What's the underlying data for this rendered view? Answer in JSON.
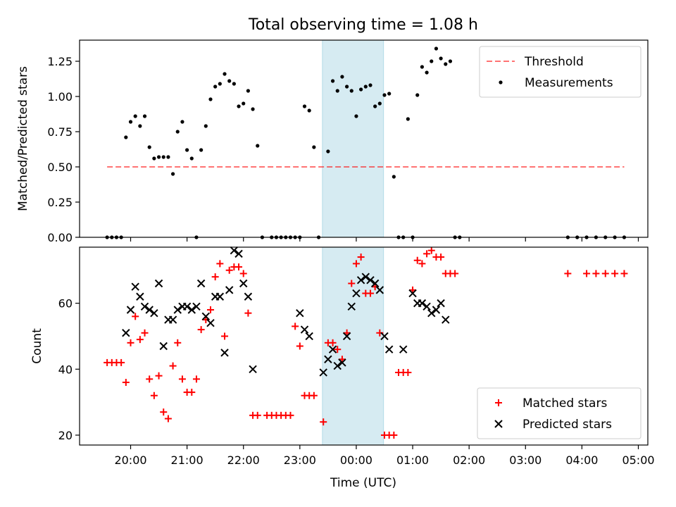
{
  "chart_data": {
    "title": "Total observing time = 1.08 h",
    "xlabel": "Time (UTC)",
    "x_ticks": [
      "20:00",
      "21:00",
      "22:00",
      "23:00",
      "00:00",
      "01:00",
      "02:00",
      "03:00",
      "04:00",
      "05:00"
    ],
    "shaded_interval": {
      "start": "23:24",
      "end": "00:29",
      "color": "#add8e6"
    },
    "colors": {
      "threshold": "#ff0000",
      "measurements": "#000000",
      "matched": "#ff0000",
      "predicted": "#000000",
      "shade": "#add8e6"
    },
    "panels": [
      {
        "type": "scatter",
        "ylabel": "Matched/Predicted stars",
        "ylim": [
          0,
          1.4
        ],
        "y_ticks": [
          "0.00",
          "0.25",
          "0.50",
          "0.75",
          "1.00",
          "1.25"
        ],
        "legend_position": "top-right",
        "threshold": {
          "name": "Threshold",
          "value": 0.5,
          "x_range": [
            "19:35",
            "04:45"
          ]
        },
        "series": [
          {
            "name": "Measurements",
            "marker": "dot",
            "points": [
              [
                "19:35",
                0
              ],
              [
                "19:40",
                0
              ],
              [
                "19:45",
                0
              ],
              [
                "19:50",
                0
              ],
              [
                "19:55",
                0.71
              ],
              [
                "20:00",
                0.82
              ],
              [
                "20:05",
                0.86
              ],
              [
                "20:10",
                0.79
              ],
              [
                "20:15",
                0.86
              ],
              [
                "20:20",
                0.64
              ],
              [
                "20:25",
                0.56
              ],
              [
                "20:30",
                0.57
              ],
              [
                "20:35",
                0.57
              ],
              [
                "20:40",
                0.57
              ],
              [
                "20:45",
                0.45
              ],
              [
                "20:50",
                0.75
              ],
              [
                "20:55",
                0.82
              ],
              [
                "21:00",
                0.62
              ],
              [
                "21:05",
                0.56
              ],
              [
                "21:10",
                0
              ],
              [
                "21:15",
                0.62
              ],
              [
                "21:20",
                0.79
              ],
              [
                "21:25",
                0.98
              ],
              [
                "21:30",
                1.07
              ],
              [
                "21:35",
                1.09
              ],
              [
                "21:40",
                1.16
              ],
              [
                "21:45",
                1.11
              ],
              [
                "21:50",
                1.09
              ],
              [
                "21:55",
                0.93
              ],
              [
                "22:00",
                0.95
              ],
              [
                "22:05",
                1.04
              ],
              [
                "22:10",
                0.91
              ],
              [
                "22:15",
                0.65
              ],
              [
                "22:20",
                0
              ],
              [
                "22:30",
                0
              ],
              [
                "22:35",
                0
              ],
              [
                "22:40",
                0
              ],
              [
                "22:45",
                0
              ],
              [
                "22:50",
                0
              ],
              [
                "22:55",
                0
              ],
              [
                "23:00",
                0
              ],
              [
                "23:05",
                0.93
              ],
              [
                "23:10",
                0.9
              ],
              [
                "23:15",
                0.64
              ],
              [
                "23:20",
                0
              ],
              [
                "23:30",
                0.61
              ],
              [
                "23:35",
                1.11
              ],
              [
                "23:40",
                1.04
              ],
              [
                "23:45",
                1.14
              ],
              [
                "23:50",
                1.07
              ],
              [
                "23:55",
                1.04
              ],
              [
                "00:00",
                0.86
              ],
              [
                "00:05",
                1.05
              ],
              [
                "00:10",
                1.07
              ],
              [
                "00:15",
                1.08
              ],
              [
                "00:20",
                0.93
              ],
              [
                "00:25",
                0.95
              ],
              [
                "00:30",
                1.01
              ],
              [
                "00:35",
                1.02
              ],
              [
                "00:40",
                0.43
              ],
              [
                "00:45",
                0
              ],
              [
                "00:50",
                0
              ],
              [
                "00:55",
                0.84
              ],
              [
                "01:00",
                0
              ],
              [
                "01:05",
                1.01
              ],
              [
                "01:10",
                1.21
              ],
              [
                "01:15",
                1.17
              ],
              [
                "01:20",
                1.25
              ],
              [
                "01:25",
                1.34
              ],
              [
                "01:30",
                1.27
              ],
              [
                "01:35",
                1.23
              ],
              [
                "01:40",
                1.25
              ],
              [
                "01:45",
                0
              ],
              [
                "01:50",
                0
              ],
              [
                "03:45",
                0
              ],
              [
                "03:55",
                0
              ],
              [
                "04:05",
                0
              ],
              [
                "04:15",
                0
              ],
              [
                "04:25",
                0
              ],
              [
                "04:35",
                0
              ],
              [
                "04:45",
                0
              ]
            ]
          }
        ]
      },
      {
        "type": "scatter",
        "ylabel": "Count",
        "ylim": [
          17,
          77
        ],
        "y_ticks": [
          "20",
          "40",
          "60"
        ],
        "legend_position": "bottom-right",
        "series": [
          {
            "name": "Matched stars",
            "marker": "plus",
            "points": [
              [
                "19:35",
                42
              ],
              [
                "19:40",
                42
              ],
              [
                "19:45",
                42
              ],
              [
                "19:50",
                42
              ],
              [
                "19:55",
                36
              ],
              [
                "20:00",
                48
              ],
              [
                "20:05",
                56
              ],
              [
                "20:10",
                49
              ],
              [
                "20:15",
                51
              ],
              [
                "20:20",
                37
              ],
              [
                "20:25",
                32
              ],
              [
                "20:30",
                38
              ],
              [
                "20:35",
                27
              ],
              [
                "20:40",
                25
              ],
              [
                "20:45",
                41
              ],
              [
                "20:50",
                48
              ],
              [
                "20:55",
                37
              ],
              [
                "21:00",
                33
              ],
              [
                "21:05",
                33
              ],
              [
                "21:10",
                37
              ],
              [
                "21:15",
                52
              ],
              [
                "21:20",
                55
              ],
              [
                "21:25",
                58
              ],
              [
                "21:30",
                68
              ],
              [
                "21:35",
                72
              ],
              [
                "21:40",
                50
              ],
              [
                "21:45",
                70
              ],
              [
                "21:50",
                71
              ],
              [
                "21:55",
                71
              ],
              [
                "22:00",
                69
              ],
              [
                "22:05",
                57
              ],
              [
                "22:10",
                26
              ],
              [
                "22:15",
                26
              ],
              [
                "22:25",
                26
              ],
              [
                "22:30",
                26
              ],
              [
                "22:35",
                26
              ],
              [
                "22:40",
                26
              ],
              [
                "22:45",
                26
              ],
              [
                "22:50",
                26
              ],
              [
                "22:55",
                53
              ],
              [
                "23:00",
                47
              ],
              [
                "23:05",
                32
              ],
              [
                "23:10",
                32
              ],
              [
                "23:15",
                32
              ],
              [
                "23:25",
                24
              ],
              [
                "23:30",
                48
              ],
              [
                "23:35",
                48
              ],
              [
                "23:40",
                46
              ],
              [
                "23:45",
                43
              ],
              [
                "23:50",
                51
              ],
              [
                "23:55",
                66
              ],
              [
                "00:00",
                72
              ],
              [
                "00:05",
                74
              ],
              [
                "00:10",
                63
              ],
              [
                "00:15",
                63
              ],
              [
                "00:20",
                65
              ],
              [
                "00:25",
                51
              ],
              [
                "00:30",
                20
              ],
              [
                "00:35",
                20
              ],
              [
                "00:40",
                20
              ],
              [
                "00:45",
                39
              ],
              [
                "00:50",
                39
              ],
              [
                "00:55",
                39
              ],
              [
                "01:00",
                64
              ],
              [
                "01:05",
                73
              ],
              [
                "01:10",
                72
              ],
              [
                "01:15",
                75
              ],
              [
                "01:20",
                76
              ],
              [
                "01:25",
                74
              ],
              [
                "01:30",
                74
              ],
              [
                "01:35",
                69
              ],
              [
                "01:40",
                69
              ],
              [
                "01:45",
                69
              ],
              [
                "03:45",
                69
              ],
              [
                "04:05",
                69
              ],
              [
                "04:15",
                69
              ],
              [
                "04:25",
                69
              ],
              [
                "04:35",
                69
              ],
              [
                "04:45",
                69
              ]
            ]
          },
          {
            "name": "Predicted stars",
            "marker": "x",
            "points": [
              [
                "19:55",
                51
              ],
              [
                "20:00",
                58
              ],
              [
                "20:05",
                65
              ],
              [
                "20:10",
                62
              ],
              [
                "20:15",
                59
              ],
              [
                "20:20",
                58
              ],
              [
                "20:25",
                57
              ],
              [
                "20:30",
                66
              ],
              [
                "20:35",
                47
              ],
              [
                "20:40",
                55
              ],
              [
                "20:45",
                55
              ],
              [
                "20:50",
                58
              ],
              [
                "20:55",
                59
              ],
              [
                "21:00",
                59
              ],
              [
                "21:05",
                58
              ],
              [
                "21:10",
                59
              ],
              [
                "21:15",
                66
              ],
              [
                "21:20",
                56
              ],
              [
                "21:25",
                54
              ],
              [
                "21:30",
                62
              ],
              [
                "21:35",
                62
              ],
              [
                "21:40",
                45
              ],
              [
                "21:45",
                64
              ],
              [
                "21:50",
                76
              ],
              [
                "21:55",
                75
              ],
              [
                "22:00",
                66
              ],
              [
                "22:05",
                62
              ],
              [
                "22:10",
                40
              ],
              [
                "23:00",
                57
              ],
              [
                "23:05",
                52
              ],
              [
                "23:10",
                50
              ],
              [
                "23:25",
                39
              ],
              [
                "23:30",
                43
              ],
              [
                "23:35",
                46
              ],
              [
                "23:40",
                41
              ],
              [
                "23:45",
                42
              ],
              [
                "23:50",
                50
              ],
              [
                "23:55",
                59
              ],
              [
                "00:00",
                63
              ],
              [
                "00:05",
                67
              ],
              [
                "00:10",
                68
              ],
              [
                "00:15",
                67
              ],
              [
                "00:20",
                66
              ],
              [
                "00:25",
                64
              ],
              [
                "00:30",
                50
              ],
              [
                "00:35",
                46
              ],
              [
                "00:50",
                46
              ],
              [
                "01:00",
                63
              ],
              [
                "01:05",
                60
              ],
              [
                "01:10",
                60
              ],
              [
                "01:15",
                59
              ],
              [
                "01:20",
                57
              ],
              [
                "01:25",
                58
              ],
              [
                "01:30",
                60
              ],
              [
                "01:35",
                55
              ]
            ]
          }
        ]
      }
    ]
  }
}
